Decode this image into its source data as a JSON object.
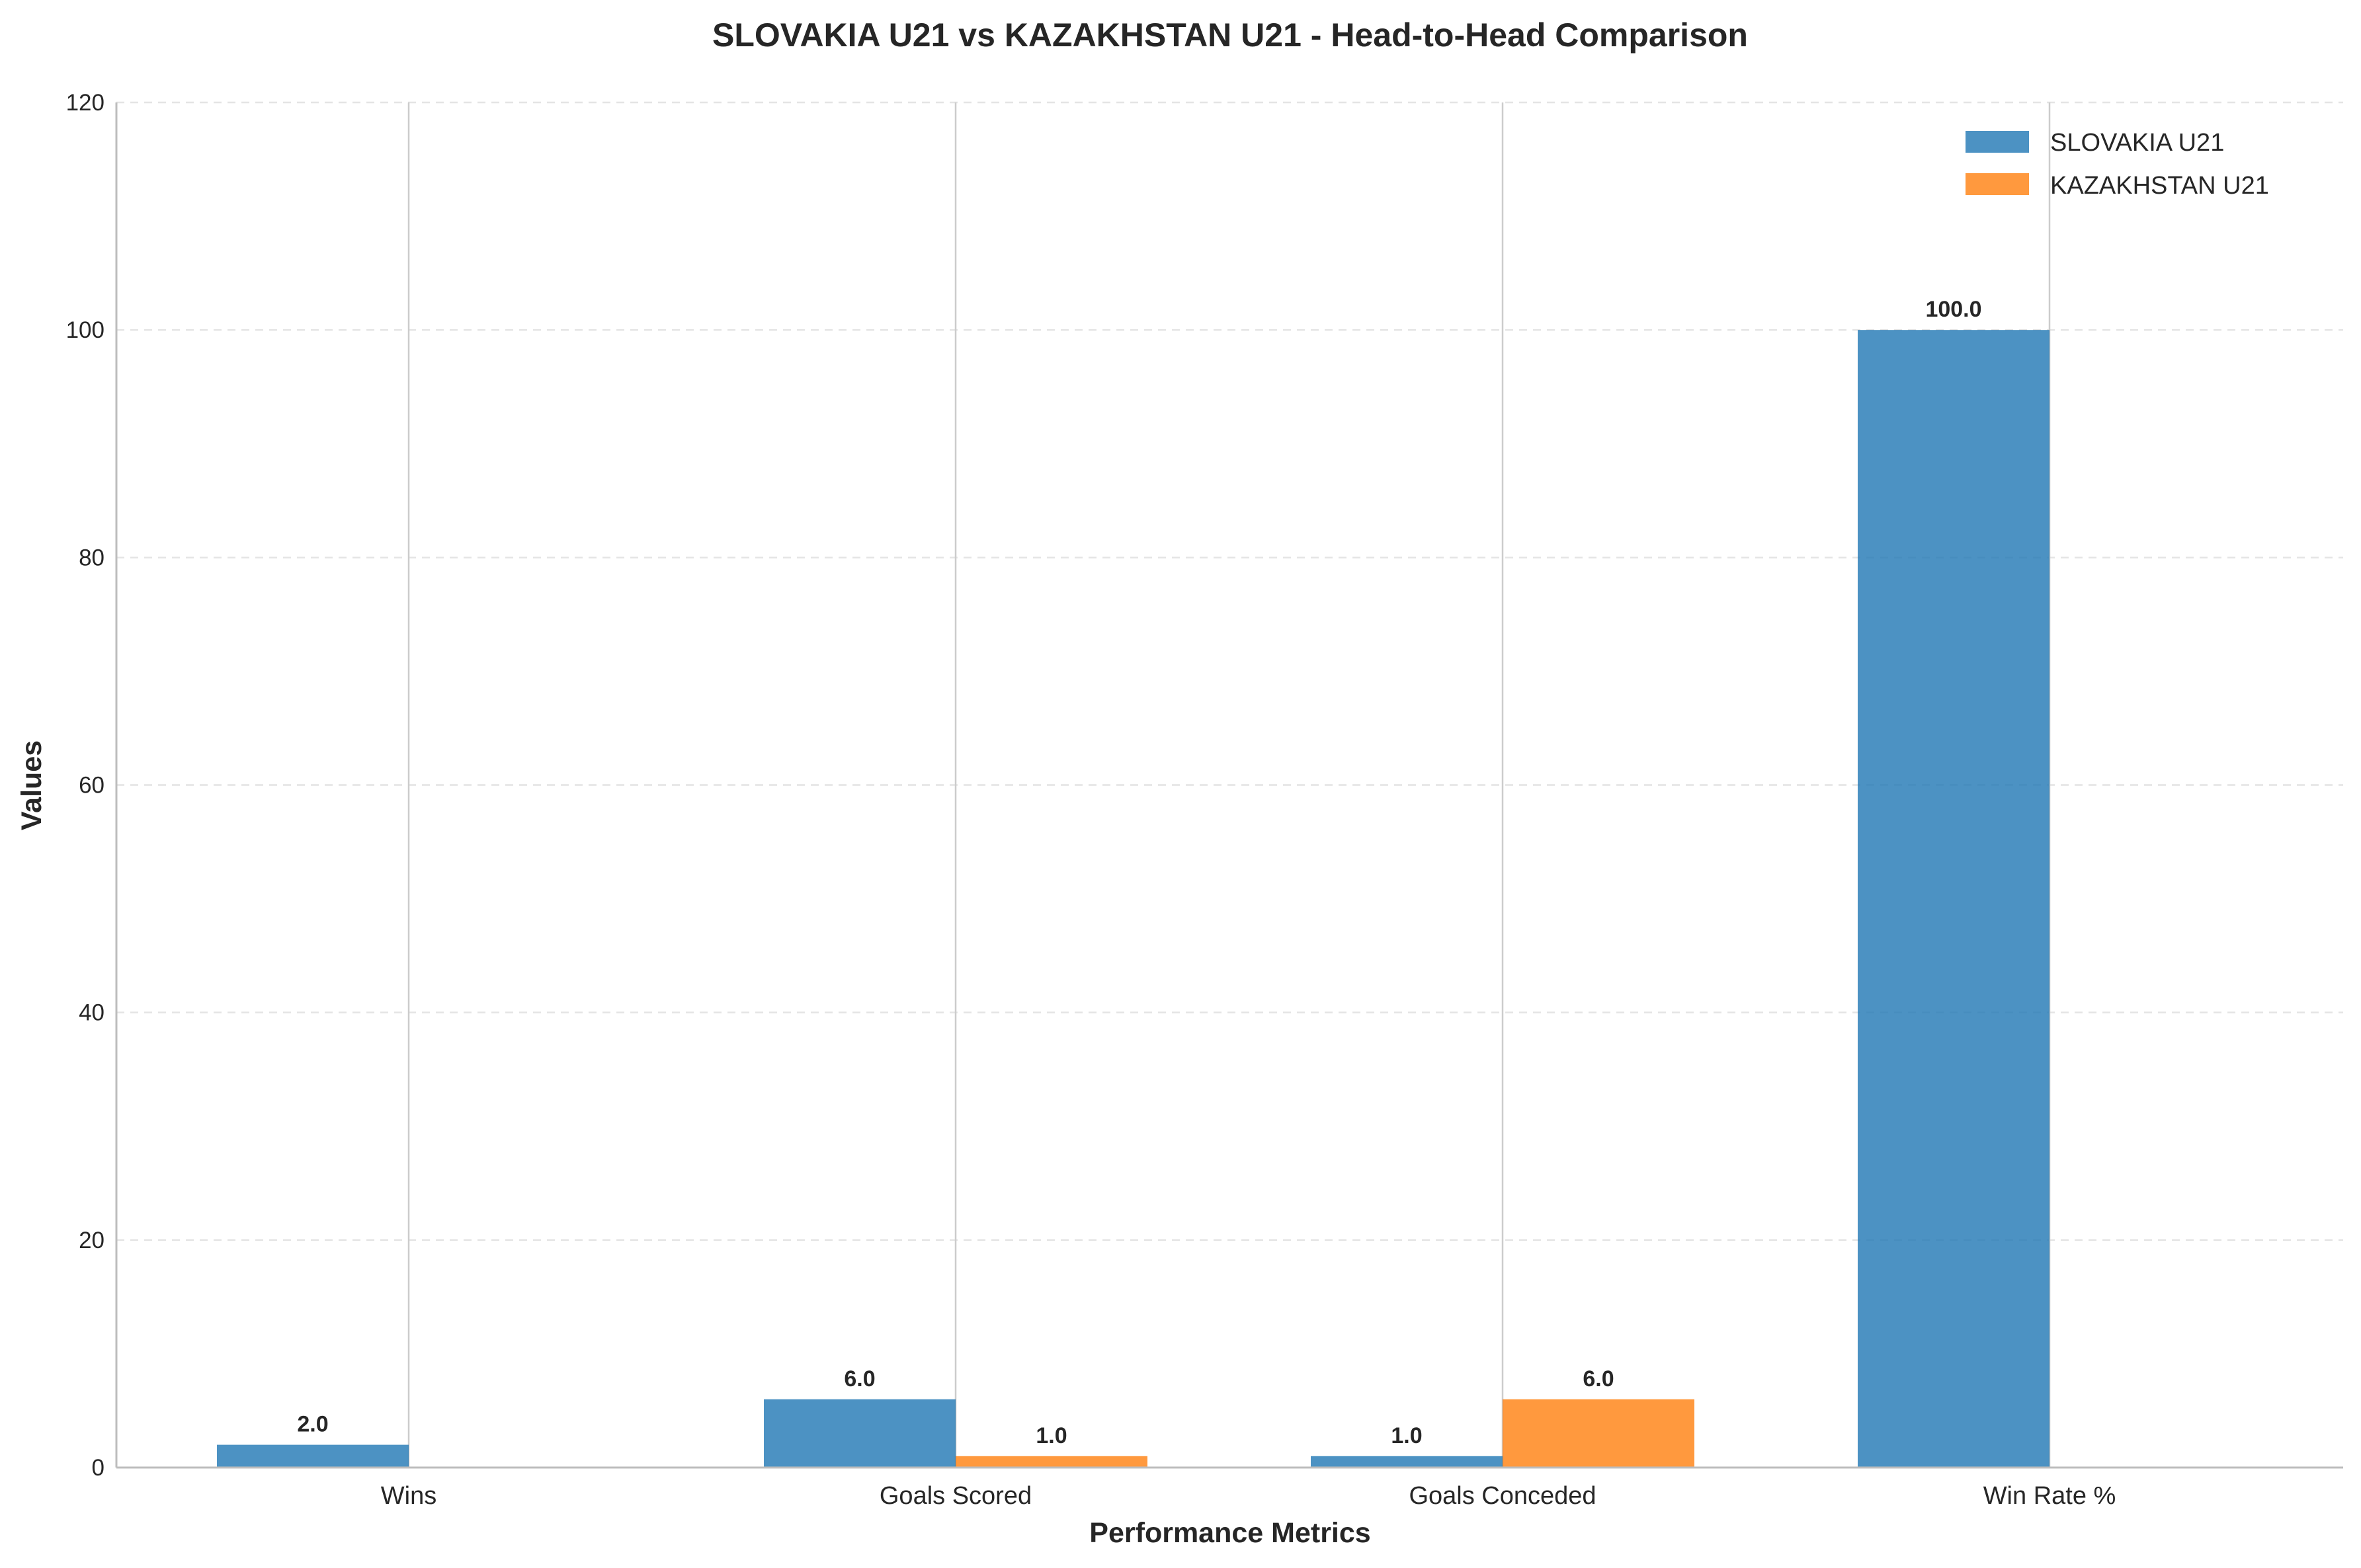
{
  "chart_data": {
    "type": "bar",
    "title": "SLOVAKIA U21 vs KAZAKHSTAN U21 - Head-to-Head Comparison",
    "xlabel": "Performance Metrics",
    "ylabel": "Values",
    "categories": [
      "Wins",
      "Goals Scored",
      "Goals Conceded",
      "Win Rate %"
    ],
    "series": [
      {
        "name": "SLOVAKIA U21",
        "color": "#1f77b4",
        "values": [
          2.0,
          6.0,
          1.0,
          100.0
        ],
        "labels": [
          "2.0",
          "6.0",
          "1.0",
          "100.0"
        ]
      },
      {
        "name": "KAZAKHSTAN U21",
        "color": "#ff7f0e",
        "values": [
          0.0,
          1.0,
          6.0,
          0.0
        ],
        "labels": [
          "",
          "1.0",
          "6.0",
          ""
        ]
      }
    ],
    "ylim": [
      0,
      120
    ],
    "yticks": [
      0,
      20,
      40,
      60,
      80,
      100,
      120
    ],
    "grid": "y-dashed",
    "legend": "top-right"
  }
}
